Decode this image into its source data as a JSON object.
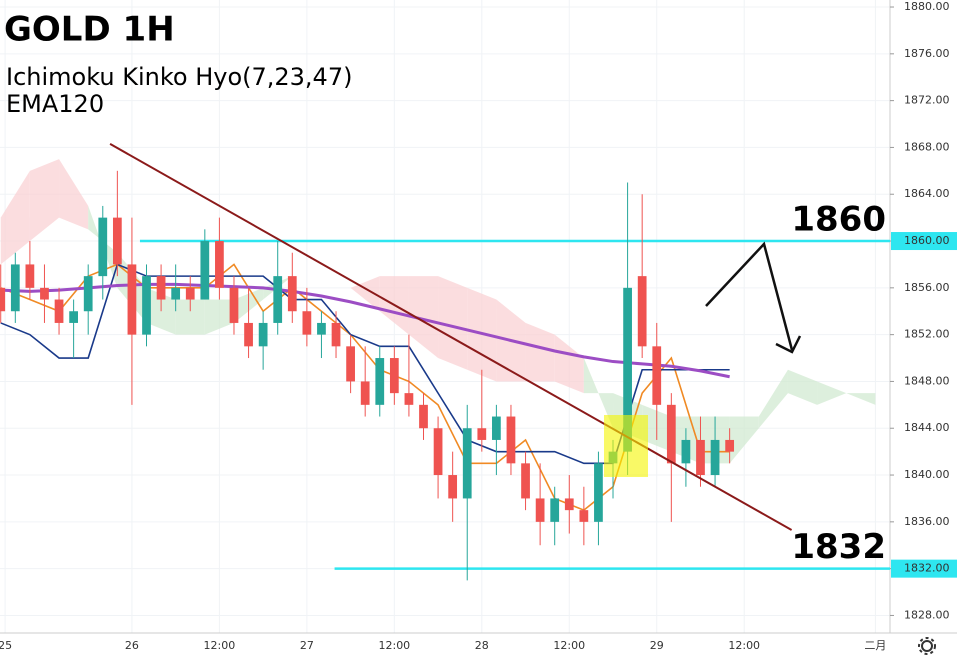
{
  "chart_data": {
    "type": "candlestick",
    "title": "GOLD 1H",
    "subtitles": [
      "Ichimoku Kinko Hyo(7,23,47)",
      "EMA120"
    ],
    "x": [
      6,
      8,
      10,
      12,
      14,
      16,
      18,
      20,
      22,
      24,
      26,
      28,
      30,
      32,
      34,
      36,
      38,
      40,
      42,
      44,
      46,
      48,
      50,
      52,
      54,
      56,
      58,
      60,
      62,
      64,
      66,
      68,
      70,
      72,
      74,
      76,
      78,
      80,
      82,
      84,
      86,
      88,
      90,
      92,
      94,
      96,
      98,
      100,
      102,
      104,
      106
    ],
    "open": [
      1856,
      1854,
      1858,
      1856,
      1855,
      1853,
      1854,
      1857,
      1862,
      1858,
      1852,
      1857,
      1855,
      1856,
      1855,
      1860,
      1856,
      1853,
      1851,
      1853,
      1857,
      1854,
      1852,
      1853,
      1851,
      1848,
      1846,
      1850,
      1847,
      1846,
      1844,
      1840,
      1838,
      1844,
      1843,
      1845,
      1841,
      1838,
      1836,
      1838,
      1837,
      1836,
      1841,
      1842,
      1857,
      1851,
      1846,
      1841,
      1843,
      1840,
      1843
    ],
    "high": [
      1858,
      1859,
      1860,
      1858,
      1856,
      1855,
      1858,
      1863,
      1866,
      1862,
      1858,
      1858,
      1858,
      1857,
      1861,
      1862,
      1857,
      1856,
      1854,
      1860,
      1859,
      1856,
      1854,
      1854,
      1852,
      1851,
      1851,
      1851,
      1852,
      1847,
      1845,
      1842,
      1846,
      1849,
      1846,
      1846,
      1842,
      1841,
      1839,
      1840,
      1839,
      1842,
      1843,
      1865,
      1864,
      1853,
      1847,
      1844,
      1845,
      1845,
      1844
    ],
    "low": [
      1853,
      1853,
      1855,
      1853,
      1852,
      1850,
      1852,
      1855,
      1857,
      1846,
      1851,
      1854,
      1854,
      1854,
      1855,
      1855,
      1852,
      1850,
      1849,
      1852,
      1853,
      1851,
      1850,
      1850,
      1847,
      1845,
      1845,
      1846,
      1845,
      1843,
      1838,
      1836,
      1831,
      1842,
      1840,
      1840,
      1837,
      1834,
      1834,
      1835,
      1834,
      1834,
      1838,
      1840,
      1850,
      1843,
      1836,
      1839,
      1839,
      1839,
      1841
    ],
    "close": [
      1854,
      1858,
      1856,
      1855,
      1853,
      1854,
      1857,
      1862,
      1858,
      1852,
      1857,
      1855,
      1856,
      1855,
      1860,
      1856,
      1853,
      1851,
      1853,
      1857,
      1854,
      1852,
      1853,
      1851,
      1848,
      1846,
      1850,
      1847,
      1846,
      1844,
      1840,
      1838,
      1844,
      1843,
      1845,
      1841,
      1838,
      1836,
      1838,
      1837,
      1836,
      1841,
      1842,
      1856,
      1851,
      1846,
      1841,
      1843,
      1840,
      1843,
      1842
    ],
    "up_color": "#26a69a",
    "down_color": "#ef5350",
    "line_x": [
      6,
      10,
      14,
      18,
      22,
      26,
      30,
      34,
      38,
      42,
      46,
      50,
      54,
      58,
      62,
      66,
      70,
      74,
      78,
      82,
      86,
      90,
      94,
      98,
      102,
      106
    ],
    "lines": [
      {
        "color": "#f08a24",
        "values": [
          1856,
          1855,
          1854,
          1857,
          1858,
          1856,
          1856,
          1856,
          1858,
          1854,
          1856,
          1854,
          1852,
          1849,
          1848,
          1846,
          1841,
          1841,
          1843,
          1838,
          1837,
          1839,
          1847,
          1850,
          1842,
          1842
        ]
      },
      {
        "color": "#1a3a8a",
        "values": [
          1853,
          1852,
          1850,
          1850,
          1858,
          1857,
          1857,
          1857,
          1857,
          1857,
          1855,
          1855,
          1852,
          1851,
          1851,
          1847,
          1843,
          1842,
          1842,
          1842,
          1841,
          1841,
          1849,
          1849,
          1849,
          1849
        ]
      },
      {
        "color": "#9c4dc4",
        "values": [
          1855.8,
          1855.7,
          1855.8,
          1856.0,
          1856.2,
          1856.3,
          1856.3,
          1856.2,
          1856.1,
          1856.0,
          1855.7,
          1855.3,
          1854.8,
          1854.2,
          1853.6,
          1853.0,
          1852.4,
          1851.8,
          1851.2,
          1850.6,
          1850.1,
          1849.7,
          1849.5,
          1849.3,
          1848.9,
          1848.4
        ]
      }
    ],
    "cloud_x": [
      6,
      10,
      14,
      18,
      22,
      26,
      30,
      34,
      38,
      42,
      46,
      50,
      54,
      58,
      62,
      66,
      70,
      74,
      78,
      82,
      86,
      90,
      94,
      98,
      102,
      106,
      110,
      114,
      118,
      122,
      126
    ],
    "cloud_a": [
      1858,
      1860,
      1862,
      1861,
      1859,
      1856,
      1855,
      1855,
      1855,
      1856,
      1857,
      1857,
      1856,
      1854,
      1852,
      1850,
      1849,
      1848,
      1848,
      1848,
      1847,
      1847,
      1846,
      1845,
      1845,
      1845,
      1845,
      1849,
      1848,
      1847,
      1847
    ],
    "cloud_b": [
      1862,
      1866,
      1867,
      1863,
      1856,
      1853,
      1852,
      1852,
      1853,
      1855,
      1857,
      1857,
      1856,
      1857,
      1857,
      1857,
      1856,
      1855,
      1853,
      1852,
      1850,
      1844,
      1843,
      1842,
      1841,
      1841,
      1844,
      1847,
      1846,
      1847,
      1846
    ],
    "cloud_up_color": "#cfe8cf",
    "cloud_down_color": "#f9cfd2",
    "levels": [
      {
        "value": 1860,
        "label": "1860",
        "start": 25.1
      },
      {
        "value": 1832,
        "label": "1832",
        "start": 51.8
      }
    ],
    "level_color": "#2ee6f0",
    "trendline": {
      "x": [
        21,
        114.5
      ],
      "y": [
        1868.3,
        1835.3
      ],
      "color": "#8b1a1a"
    },
    "xlim": [
      5.9,
      128
    ],
    "ylim": [
      1826.5,
      1880.6
    ],
    "yticks": [
      {
        "value": 1880,
        "label": "1880.00"
      },
      {
        "value": 1876,
        "label": "1876.00"
      },
      {
        "value": 1872,
        "label": "1872.00"
      },
      {
        "value": 1868,
        "label": "1868.00"
      },
      {
        "value": 1864,
        "label": "1864.00"
      },
      {
        "value": 1860,
        "label": "1860.00"
      },
      {
        "value": 1856,
        "label": "1856.00"
      },
      {
        "value": 1852,
        "label": "1852.00"
      },
      {
        "value": 1848,
        "label": "1848.00"
      },
      {
        "value": 1844,
        "label": "1844.00"
      },
      {
        "value": 1840,
        "label": "1840.00"
      },
      {
        "value": 1836,
        "label": "1836.00"
      },
      {
        "value": 1832,
        "label": "1832.00"
      },
      {
        "value": 1828,
        "label": "1828.00"
      }
    ],
    "xticks": [
      {
        "value": 6.6,
        "label": "25"
      },
      {
        "value": 24,
        "label": "26"
      },
      {
        "value": 36,
        "label": "12:00"
      },
      {
        "value": 48,
        "label": "27"
      },
      {
        "value": 60,
        "label": "12:00"
      },
      {
        "value": 72,
        "label": "28"
      },
      {
        "value": 84,
        "label": "12:00"
      },
      {
        "value": 96,
        "label": "29"
      },
      {
        "value": 108,
        "label": "12:00"
      },
      {
        "value": 126,
        "label": "二月"
      }
    ]
  }
}
